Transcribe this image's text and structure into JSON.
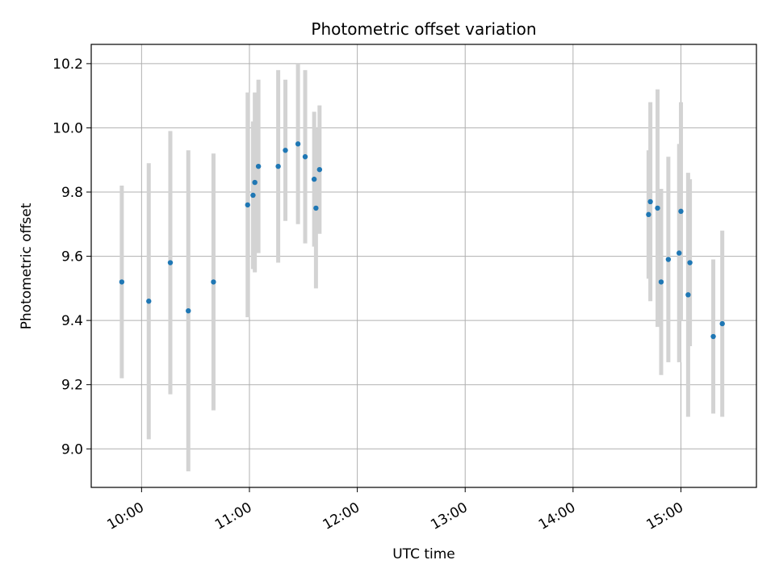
{
  "chart_data": {
    "type": "scatter",
    "title": "Photometric offset variation",
    "xlabel": "UTC time",
    "ylabel": "Photometric offset",
    "x_ticks": [
      "10:00",
      "11:00",
      "12:00",
      "13:00",
      "14:00",
      "15:00"
    ],
    "y_ticks": [
      "9.0",
      "9.2",
      "9.4",
      "9.6",
      "9.8",
      "10.0",
      "10.2"
    ],
    "xlim": [
      "09:32",
      "15:42"
    ],
    "ylim": [
      8.88,
      10.26
    ],
    "grid": true,
    "legend": "none",
    "point_color": "#1f77b4",
    "errorbar_color": "#d3d3d3",
    "points": [
      {
        "x": "09:49",
        "y": 9.52,
        "yerr": 0.3
      },
      {
        "x": "10:04",
        "y": 9.46,
        "yerr": 0.43
      },
      {
        "x": "10:16",
        "y": 9.58,
        "yerr": 0.41
      },
      {
        "x": "10:26",
        "y": 9.43,
        "yerr": 0.5
      },
      {
        "x": "10:40",
        "y": 9.52,
        "yerr": 0.4
      },
      {
        "x": "10:59",
        "y": 9.76,
        "yerr": 0.35
      },
      {
        "x": "11:02",
        "y": 9.79,
        "yerr": 0.23
      },
      {
        "x": "11:03",
        "y": 9.83,
        "yerr": 0.28
      },
      {
        "x": "11:05",
        "y": 9.88,
        "yerr": 0.27
      },
      {
        "x": "11:16",
        "y": 9.88,
        "yerr": 0.3
      },
      {
        "x": "11:20",
        "y": 9.93,
        "yerr": 0.22
      },
      {
        "x": "11:27",
        "y": 9.95,
        "yerr": 0.25
      },
      {
        "x": "11:31",
        "y": 9.91,
        "yerr": 0.27
      },
      {
        "x": "11:36",
        "y": 9.84,
        "yerr": 0.21
      },
      {
        "x": "11:37",
        "y": 9.75,
        "yerr": 0.25
      },
      {
        "x": "11:39",
        "y": 9.87,
        "yerr": 0.2
      },
      {
        "x": "14:42",
        "y": 9.73,
        "yerr": 0.2
      },
      {
        "x": "14:43",
        "y": 9.77,
        "yerr": 0.31
      },
      {
        "x": "14:47",
        "y": 9.75,
        "yerr": 0.37
      },
      {
        "x": "14:49",
        "y": 9.52,
        "yerr": 0.29
      },
      {
        "x": "14:53",
        "y": 9.59,
        "yerr": 0.32
      },
      {
        "x": "14:59",
        "y": 9.61,
        "yerr": 0.34
      },
      {
        "x": "15:00",
        "y": 9.74,
        "yerr": 0.34
      },
      {
        "x": "15:04",
        "y": 9.48,
        "yerr": 0.38
      },
      {
        "x": "15:05",
        "y": 9.58,
        "yerr": 0.26
      },
      {
        "x": "15:18",
        "y": 9.35,
        "yerr": 0.24
      },
      {
        "x": "15:23",
        "y": 9.39,
        "yerr": 0.29
      }
    ]
  }
}
